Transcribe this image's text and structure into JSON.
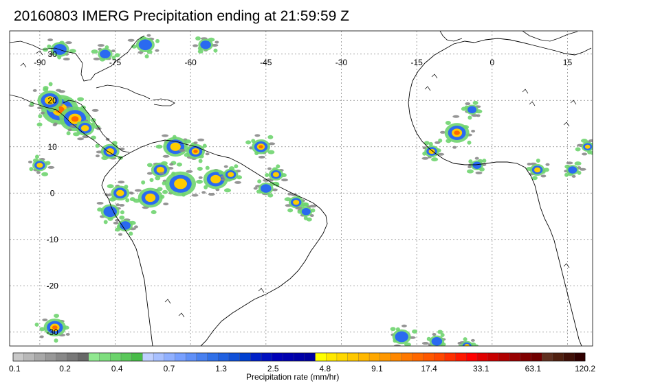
{
  "title": "20160803 IMERG Precipitation ending at 21:59:59 Z",
  "map": {
    "lon_range": [
      -96,
      20
    ],
    "lat_range": [
      -33,
      35
    ],
    "lon_ticks": [
      {
        "value": -90,
        "label": "-90"
      },
      {
        "value": -75,
        "label": "-75"
      },
      {
        "value": -60,
        "label": "-60"
      },
      {
        "value": -45,
        "label": "-45"
      },
      {
        "value": -30,
        "label": "-30"
      },
      {
        "value": -15,
        "label": "-15"
      },
      {
        "value": 0,
        "label": "0"
      },
      {
        "value": 15,
        "label": "15"
      }
    ],
    "lat_ticks": [
      {
        "value": 30,
        "label": "30"
      },
      {
        "value": 20,
        "label": "20"
      },
      {
        "value": 10,
        "label": "10"
      },
      {
        "value": 0,
        "label": "0"
      },
      {
        "value": -10,
        "label": "-10"
      },
      {
        "value": -20,
        "label": "-20"
      },
      {
        "value": -30,
        "label": "-30"
      }
    ],
    "gridlines": true,
    "coastline_color": "#000000",
    "grid_color": "#888888"
  },
  "colorbar": {
    "title": "Precipitation rate (mm/hr)",
    "colors": [
      "#c8c8c8",
      "#b8b8b8",
      "#a8a8a8",
      "#989898",
      "#888888",
      "#787878",
      "#686868",
      "#90e890",
      "#7ede7e",
      "#6cd46c",
      "#5ac85a",
      "#48bc48",
      "#c0d0ff",
      "#a8c0ff",
      "#90b0ff",
      "#78a0ff",
      "#6090f8",
      "#4880f0",
      "#3070e8",
      "#2060e0",
      "#1050d8",
      "#0040d0",
      "#0020c8",
      "#0010c0",
      "#0000b8",
      "#0000b0",
      "#0000a8",
      "#0000a0",
      "#ffff00",
      "#ffe800",
      "#ffd800",
      "#ffc800",
      "#ffb800",
      "#ffa800",
      "#ff9800",
      "#ff8800",
      "#ff7800",
      "#ff6800",
      "#ff5800",
      "#ff4800",
      "#ff3000",
      "#ff1800",
      "#ff0000",
      "#e00000",
      "#c80000",
      "#b00000",
      "#980000",
      "#800000",
      "#700000",
      "#603020",
      "#502010",
      "#401008",
      "#300000"
    ],
    "labels": [
      "0.1",
      "0.2",
      "0.4",
      "0.7",
      "1.3",
      "2.5",
      "4.8",
      "9.1",
      "17.4",
      "33.1",
      "63.1",
      "120.2"
    ]
  },
  "precip_cells": [
    {
      "lon": -86,
      "lat": 18,
      "size": 3,
      "max": 3
    },
    {
      "lon": -83,
      "lat": 16,
      "size": 2.5,
      "max": 3
    },
    {
      "lon": -88,
      "lat": 20,
      "size": 2,
      "max": 2
    },
    {
      "lon": -81,
      "lat": 14,
      "size": 1.5,
      "max": 2
    },
    {
      "lon": -77,
      "lat": 30,
      "size": 1.2,
      "max": 1
    },
    {
      "lon": -69,
      "lat": 32,
      "size": 1.5,
      "max": 1
    },
    {
      "lon": -57,
      "lat": 32,
      "size": 1.2,
      "max": 1
    },
    {
      "lon": -86,
      "lat": 31,
      "size": 1.5,
      "max": 1
    },
    {
      "lon": -90,
      "lat": 6,
      "size": 1.2,
      "max": 2
    },
    {
      "lon": -76,
      "lat": 9,
      "size": 1.5,
      "max": 2
    },
    {
      "lon": -63,
      "lat": 10,
      "size": 2,
      "max": 2
    },
    {
      "lon": -59,
      "lat": 9,
      "size": 1.5,
      "max": 3
    },
    {
      "lon": -66,
      "lat": 5,
      "size": 1.5,
      "max": 2
    },
    {
      "lon": -62,
      "lat": 2,
      "size": 2.5,
      "max": 2
    },
    {
      "lon": -55,
      "lat": 3,
      "size": 2,
      "max": 2
    },
    {
      "lon": -52,
      "lat": 4,
      "size": 1.2,
      "max": 2
    },
    {
      "lon": -68,
      "lat": -1,
      "size": 2,
      "max": 2
    },
    {
      "lon": -74,
      "lat": 0,
      "size": 1.5,
      "max": 2
    },
    {
      "lon": -76,
      "lat": -4,
      "size": 1.5,
      "max": 1
    },
    {
      "lon": -73,
      "lat": -7,
      "size": 1.2,
      "max": 1
    },
    {
      "lon": -46,
      "lat": 10,
      "size": 1.5,
      "max": 3
    },
    {
      "lon": -43,
      "lat": 4,
      "size": 1.2,
      "max": 2
    },
    {
      "lon": -45,
      "lat": 1,
      "size": 1.2,
      "max": 1
    },
    {
      "lon": -39,
      "lat": -2,
      "size": 1.2,
      "max": 2
    },
    {
      "lon": -37,
      "lat": -4,
      "size": 1,
      "max": 1
    },
    {
      "lon": -7,
      "lat": 13,
      "size": 2,
      "max": 3
    },
    {
      "lon": -4,
      "lat": 18,
      "size": 1,
      "max": 1
    },
    {
      "lon": -12,
      "lat": 9,
      "size": 1.2,
      "max": 2
    },
    {
      "lon": -3,
      "lat": 6,
      "size": 1,
      "max": 1
    },
    {
      "lon": 9,
      "lat": 5,
      "size": 1.2,
      "max": 2
    },
    {
      "lon": 19,
      "lat": 10,
      "size": 1,
      "max": 2
    },
    {
      "lon": 16,
      "lat": 5,
      "size": 1,
      "max": 1
    },
    {
      "lon": -87,
      "lat": -29,
      "size": 1.8,
      "max": 3
    },
    {
      "lon": -18,
      "lat": -31,
      "size": 1.5,
      "max": 1
    },
    {
      "lon": -11,
      "lat": -32,
      "size": 1.2,
      "max": 1
    },
    {
      "lon": -5,
      "lat": -33,
      "size": 1,
      "max": 2
    }
  ]
}
